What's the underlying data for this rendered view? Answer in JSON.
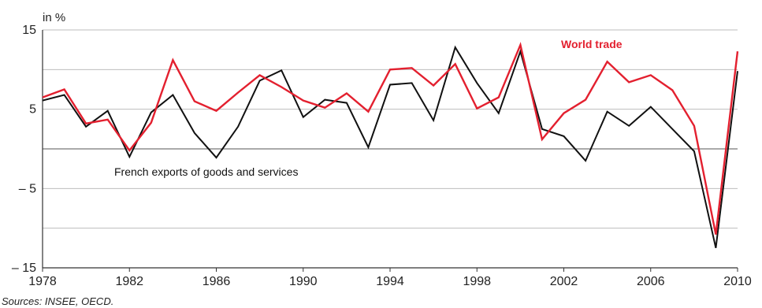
{
  "chart_data": {
    "type": "line",
    "unit_label": "in %",
    "x": [
      1978,
      1979,
      1980,
      1981,
      1982,
      1983,
      1984,
      1985,
      1986,
      1987,
      1988,
      1989,
      1990,
      1991,
      1992,
      1993,
      1994,
      1995,
      1996,
      1997,
      1998,
      1999,
      2000,
      2001,
      2002,
      2003,
      2004,
      2005,
      2006,
      2007,
      2008,
      2009,
      2010
    ],
    "xticks": [
      1978,
      1982,
      1986,
      1990,
      1994,
      1998,
      2002,
      2006,
      2010
    ],
    "yticks": [
      -15,
      -5,
      5,
      15
    ],
    "ytick_labels": [
      "– 15",
      "– 5",
      "5",
      "15"
    ],
    "xlim": [
      1978,
      2010
    ],
    "ylim": [
      -15,
      15
    ],
    "grid": "horizontal",
    "series": [
      {
        "name": "World trade",
        "color": "#e3202f",
        "values": [
          6.5,
          7.5,
          3.2,
          3.7,
          -0.2,
          3.3,
          11.2,
          6.0,
          4.8,
          7.1,
          9.3,
          7.8,
          6.1,
          5.2,
          7.0,
          4.7,
          10.0,
          10.2,
          8.0,
          10.7,
          5.1,
          6.5,
          13.1,
          1.2,
          4.5,
          6.2,
          11.0,
          8.4,
          9.3,
          7.4,
          2.9,
          -10.8,
          12.3
        ],
        "label_position": "upper-right"
      },
      {
        "name": "French exports of goods and services",
        "color": "#111111",
        "values": [
          6.1,
          6.8,
          2.8,
          4.8,
          -1.0,
          4.6,
          6.8,
          2.0,
          -1.1,
          2.8,
          8.6,
          9.9,
          4.0,
          6.2,
          5.8,
          0.2,
          8.1,
          8.3,
          3.6,
          12.8,
          8.3,
          4.5,
          12.3,
          2.5,
          1.6,
          -1.5,
          4.7,
          2.9,
          5.3,
          2.5,
          -0.3,
          -12.5,
          9.8
        ],
        "label_position": "lower-left"
      }
    ],
    "source": "Sources: INSEE, OECD."
  }
}
